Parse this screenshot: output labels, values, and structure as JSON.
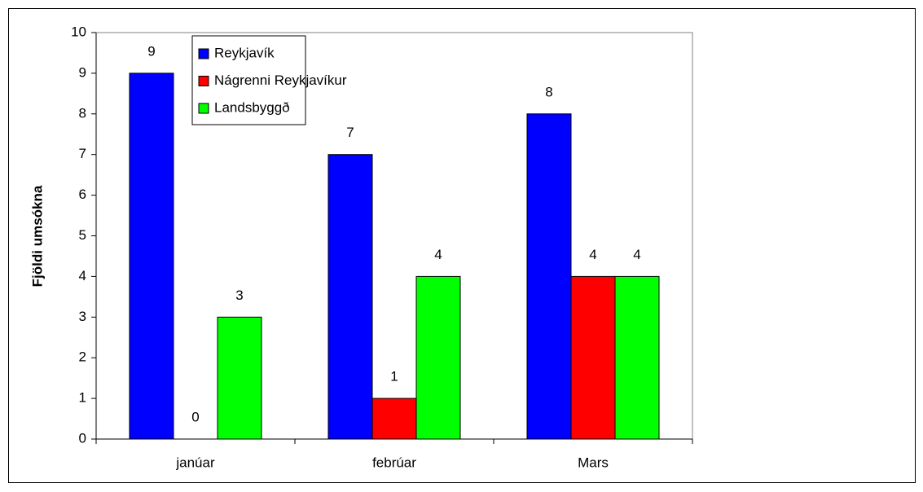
{
  "chart_data": {
    "type": "bar",
    "y_label": "Fjöldi umsókna",
    "categories": [
      "janúar",
      "febrúar",
      "Mars"
    ],
    "series": [
      {
        "name": "Reykjavík",
        "color": "#0000ff",
        "values": [
          9,
          7,
          8
        ]
      },
      {
        "name": "Nágrenni Reykjavíkur",
        "color": "#ff0000",
        "values": [
          0,
          1,
          4
        ]
      },
      {
        "name": "Landsbyggð",
        "color": "#00ff00",
        "values": [
          3,
          4,
          4
        ]
      }
    ],
    "ylim": [
      0,
      10
    ],
    "yticks": [
      0,
      1,
      2,
      3,
      4,
      5,
      6,
      7,
      8,
      9,
      10
    ],
    "legend": "top-left",
    "grid": false
  }
}
